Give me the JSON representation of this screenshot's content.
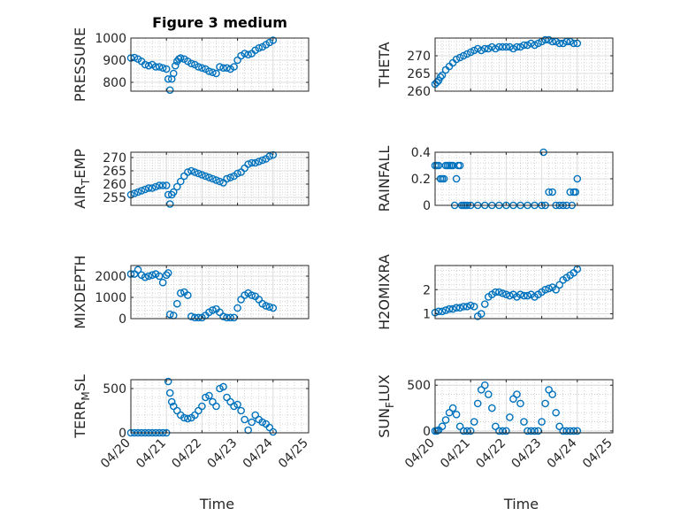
{
  "figure": {
    "title": "Figure 3 medium",
    "marker_color": "#0072BD",
    "x_axis": {
      "label": "Time",
      "tick_labels": [
        "04/20",
        "04/21",
        "04/22",
        "04/23",
        "04/24",
        "04/25"
      ]
    }
  },
  "chart_data": [
    {
      "type": "scatter",
      "ylabel": "PRESSURE",
      "title": "Figure 3 medium",
      "xlim": [
        0,
        5
      ],
      "ylim": [
        760,
        1000
      ],
      "yticks": [
        800,
        900,
        1000
      ],
      "grid": true,
      "minor_grid": true,
      "x": [
        0,
        0.1,
        0.2,
        0.3,
        0.4,
        0.5,
        0.6,
        0.7,
        0.8,
        0.9,
        1.0,
        1.05,
        1.1,
        1.15,
        1.2,
        1.25,
        1.3,
        1.35,
        1.4,
        1.5,
        1.6,
        1.7,
        1.8,
        1.9,
        2.0,
        2.1,
        2.2,
        2.3,
        2.4,
        2.5,
        2.6,
        2.7,
        2.8,
        2.9,
        3.0,
        3.1,
        3.2,
        3.3,
        3.4,
        3.5,
        3.6,
        3.7,
        3.8,
        3.9,
        4.0
      ],
      "y": [
        910,
        912,
        905,
        895,
        880,
        875,
        880,
        870,
        870,
        865,
        860,
        815,
        765,
        815,
        840,
        875,
        895,
        905,
        910,
        905,
        895,
        885,
        880,
        870,
        865,
        860,
        850,
        845,
        840,
        870,
        865,
        865,
        860,
        870,
        900,
        920,
        930,
        925,
        930,
        945,
        955,
        960,
        970,
        980,
        990
      ]
    },
    {
      "type": "scatter",
      "ylabel": "THETA",
      "xlim": [
        0,
        5
      ],
      "ylim": [
        260,
        275
      ],
      "yticks": [
        260,
        265,
        270
      ],
      "grid": true,
      "minor_grid": true,
      "x": [
        0,
        0.05,
        0.1,
        0.15,
        0.2,
        0.3,
        0.4,
        0.5,
        0.6,
        0.7,
        0.8,
        0.9,
        1.0,
        1.1,
        1.2,
        1.3,
        1.4,
        1.5,
        1.6,
        1.7,
        1.8,
        1.9,
        2.0,
        2.1,
        2.2,
        2.3,
        2.4,
        2.5,
        2.6,
        2.7,
        2.8,
        2.9,
        3.0,
        3.1,
        3.2,
        3.3,
        3.4,
        3.5,
        3.6,
        3.7,
        3.8,
        3.9,
        4.0
      ],
      "y": [
        262,
        262.5,
        263,
        264,
        264.5,
        266,
        267,
        268,
        269,
        269.5,
        270,
        270.5,
        271,
        271.5,
        272,
        271.5,
        272,
        272,
        272.5,
        272,
        272.5,
        272.5,
        272.5,
        272.5,
        272,
        272.5,
        272.5,
        273,
        273,
        273.5,
        273,
        273.5,
        274,
        274.5,
        274.5,
        274,
        274,
        273.5,
        273.5,
        274,
        274,
        273.5,
        273.5
      ]
    },
    {
      "type": "scatter",
      "ylabel": "AIR_TEMP",
      "xlim": [
        0,
        5
      ],
      "ylim": [
        252,
        272
      ],
      "yticks": [
        255,
        260,
        265,
        270
      ],
      "grid": true,
      "minor_grid": true,
      "x": [
        0,
        0.1,
        0.2,
        0.3,
        0.4,
        0.5,
        0.6,
        0.7,
        0.8,
        0.9,
        1.0,
        1.05,
        1.1,
        1.15,
        1.2,
        1.3,
        1.4,
        1.5,
        1.6,
        1.7,
        1.8,
        1.9,
        2.0,
        2.1,
        2.2,
        2.3,
        2.4,
        2.5,
        2.6,
        2.7,
        2.8,
        2.9,
        3.0,
        3.1,
        3.2,
        3.3,
        3.4,
        3.5,
        3.6,
        3.7,
        3.8,
        3.9,
        4.0
      ],
      "y": [
        256,
        256.5,
        257,
        257.5,
        258,
        258.5,
        258.5,
        259,
        259.5,
        259.5,
        259.5,
        256,
        252.5,
        256,
        257,
        259,
        261,
        263,
        264.5,
        265,
        264.5,
        264,
        263.5,
        263,
        262.5,
        262,
        261.5,
        261,
        260.5,
        262,
        262.5,
        263,
        264,
        264.5,
        266,
        267.5,
        268,
        268,
        268.5,
        269,
        269.5,
        270.5,
        271
      ]
    },
    {
      "type": "scatter",
      "ylabel": "RAINFALL",
      "xlim": [
        0,
        5
      ],
      "ylim": [
        0,
        0.4
      ],
      "yticks": [
        0,
        0.2,
        0.4
      ],
      "grid": true,
      "minor_grid": true,
      "x": [
        0,
        0.05,
        0.1,
        0.15,
        0.2,
        0.25,
        0.3,
        0.35,
        0.4,
        0.45,
        0.5,
        0.55,
        0.6,
        0.65,
        0.7,
        0.75,
        0.8,
        0.85,
        0.9,
        1.0,
        1.2,
        1.4,
        1.6,
        1.8,
        2.0,
        2.2,
        2.4,
        2.6,
        2.8,
        3.0,
        3.05,
        3.1,
        3.2,
        3.3,
        3.4,
        3.5,
        3.6,
        3.7,
        3.8,
        3.85,
        3.9,
        3.95,
        4.0
      ],
      "y": [
        0.3,
        0.3,
        0.3,
        0.2,
        0.2,
        0.2,
        0.3,
        0.3,
        0.3,
        0.3,
        0.3,
        0,
        0.2,
        0.3,
        0.3,
        0,
        0,
        0,
        0,
        0,
        0,
        0,
        0,
        0,
        0,
        0,
        0,
        0,
        0,
        0,
        0.4,
        0,
        0.1,
        0.1,
        0,
        0,
        0,
        0,
        0.1,
        0,
        0.1,
        0.1,
        0.2
      ]
    },
    {
      "type": "scatter",
      "ylabel": "MIXDEPTH",
      "xlim": [
        0,
        5
      ],
      "ylim": [
        0,
        2500
      ],
      "yticks": [
        0,
        1000,
        2000
      ],
      "grid": true,
      "minor_grid": true,
      "x": [
        0,
        0.1,
        0.2,
        0.3,
        0.4,
        0.5,
        0.6,
        0.7,
        0.8,
        0.9,
        1.0,
        1.05,
        1.1,
        1.2,
        1.3,
        1.4,
        1.5,
        1.6,
        1.7,
        1.8,
        1.9,
        2.0,
        2.1,
        2.2,
        2.3,
        2.4,
        2.5,
        2.6,
        2.7,
        2.8,
        2.9,
        3.0,
        3.1,
        3.2,
        3.3,
        3.4,
        3.5,
        3.6,
        3.7,
        3.8,
        3.9,
        4.0
      ],
      "y": [
        2100,
        2100,
        2300,
        2050,
        1950,
        2000,
        2050,
        2100,
        2000,
        1700,
        2050,
        2150,
        200,
        150,
        700,
        1200,
        1250,
        1100,
        100,
        50,
        50,
        50,
        150,
        300,
        400,
        450,
        300,
        100,
        50,
        50,
        50,
        500,
        900,
        1100,
        1200,
        1100,
        1050,
        900,
        700,
        600,
        550,
        500
      ]
    },
    {
      "type": "scatter",
      "ylabel": "H2OMIXRA",
      "xlim": [
        0,
        5
      ],
      "ylim": [
        0.8,
        3
      ],
      "yticks": [
        1,
        2
      ],
      "grid": true,
      "minor_grid": true,
      "x": [
        0,
        0.1,
        0.2,
        0.3,
        0.4,
        0.5,
        0.6,
        0.7,
        0.8,
        0.9,
        1.0,
        1.1,
        1.2,
        1.3,
        1.4,
        1.5,
        1.6,
        1.7,
        1.8,
        1.9,
        2.0,
        2.1,
        2.2,
        2.3,
        2.4,
        2.5,
        2.6,
        2.7,
        2.8,
        2.9,
        3.0,
        3.1,
        3.2,
        3.3,
        3.4,
        3.5,
        3.6,
        3.7,
        3.8,
        3.9,
        4.0
      ],
      "y": [
        1.05,
        1.1,
        1.1,
        1.15,
        1.2,
        1.2,
        1.25,
        1.25,
        1.3,
        1.3,
        1.35,
        1.3,
        0.9,
        1.0,
        1.4,
        1.7,
        1.8,
        1.9,
        1.9,
        1.85,
        1.8,
        1.75,
        1.8,
        1.7,
        1.8,
        1.75,
        1.75,
        1.8,
        1.7,
        1.8,
        1.9,
        2.0,
        2.05,
        2.1,
        2.0,
        2.2,
        2.4,
        2.5,
        2.6,
        2.7,
        2.85
      ]
    },
    {
      "type": "scatter",
      "ylabel": "TERR_MSL",
      "xlim": [
        0,
        5
      ],
      "ylim": [
        0,
        600
      ],
      "yticks": [
        0,
        500
      ],
      "grid": true,
      "minor_grid": true,
      "x": [
        0,
        0.1,
        0.2,
        0.3,
        0.4,
        0.5,
        0.6,
        0.7,
        0.8,
        0.9,
        1.0,
        1.05,
        1.1,
        1.15,
        1.2,
        1.3,
        1.4,
        1.5,
        1.6,
        1.7,
        1.8,
        1.9,
        2.0,
        2.1,
        2.2,
        2.3,
        2.4,
        2.5,
        2.6,
        2.7,
        2.8,
        2.9,
        3.0,
        3.1,
        3.2,
        3.3,
        3.4,
        3.5,
        3.6,
        3.7,
        3.8,
        3.9,
        4.0
      ],
      "y": [
        0,
        0,
        0,
        0,
        0,
        0,
        0,
        0,
        0,
        0,
        0,
        580,
        450,
        350,
        300,
        250,
        200,
        170,
        160,
        170,
        200,
        250,
        300,
        400,
        420,
        350,
        300,
        500,
        520,
        400,
        350,
        300,
        320,
        250,
        150,
        30,
        120,
        200,
        150,
        120,
        100,
        60,
        10
      ]
    },
    {
      "type": "scatter",
      "ylabel": "SUN_FLUX",
      "xlim": [
        0,
        5
      ],
      "ylim": [
        -20,
        560
      ],
      "yticks": [
        0,
        500
      ],
      "grid": true,
      "minor_grid": true,
      "x": [
        0,
        0.05,
        0.1,
        0.2,
        0.3,
        0.4,
        0.5,
        0.6,
        0.7,
        0.8,
        0.9,
        1.0,
        1.1,
        1.2,
        1.3,
        1.4,
        1.5,
        1.6,
        1.7,
        1.8,
        1.9,
        2.0,
        2.1,
        2.2,
        2.3,
        2.4,
        2.5,
        2.6,
        2.7,
        2.8,
        2.9,
        3.0,
        3.1,
        3.2,
        3.3,
        3.4,
        3.5,
        3.6,
        3.7,
        3.8,
        3.9,
        4.0
      ],
      "y": [
        0,
        0,
        10,
        50,
        120,
        200,
        250,
        180,
        50,
        0,
        0,
        0,
        100,
        300,
        450,
        500,
        400,
        250,
        50,
        0,
        0,
        0,
        150,
        350,
        400,
        300,
        100,
        0,
        0,
        0,
        0,
        100,
        300,
        450,
        400,
        200,
        50,
        0,
        0,
        0,
        0,
        0
      ]
    }
  ]
}
